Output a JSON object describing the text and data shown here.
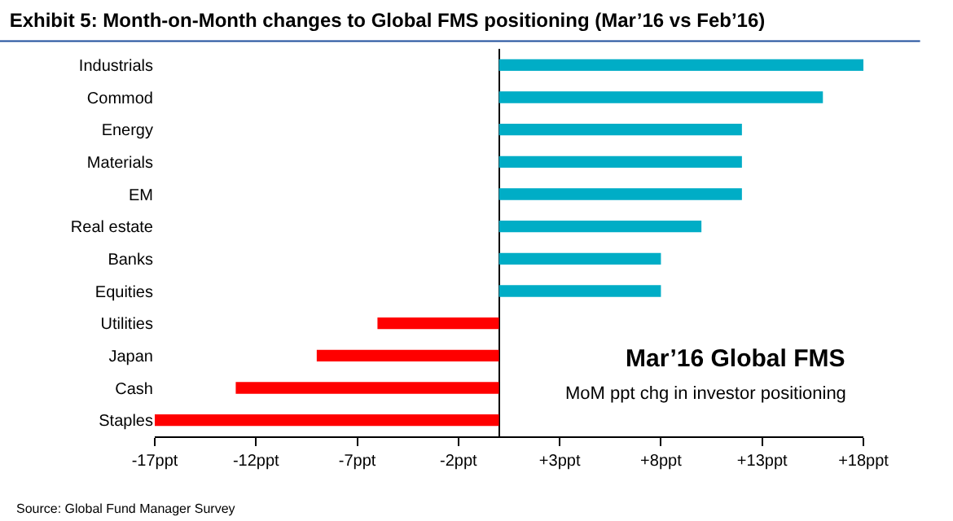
{
  "chart_data": {
    "type": "bar",
    "orientation": "horizontal",
    "title": "Exhibit 5: Month-on-Month changes to Global FMS positioning (Mar’16 vs Feb’16)",
    "categories": [
      "Industrials",
      "Commod",
      "Energy",
      "Materials",
      "EM",
      "Real estate",
      "Banks",
      "Equities",
      "Utilities",
      "Japan",
      "Cash",
      "Staples"
    ],
    "values": [
      18,
      16,
      12,
      12,
      12,
      10,
      8,
      8,
      -6,
      -9,
      -13,
      -17
    ],
    "colors": [
      "#00adc6",
      "#00adc6",
      "#00adc6",
      "#00adc6",
      "#00adc6",
      "#00adc6",
      "#00adc6",
      "#00adc6",
      "#ff0000",
      "#ff0000",
      "#ff0000",
      "#ff0000"
    ],
    "xlim": [
      -17,
      18
    ],
    "xticks": [
      {
        "value": -17,
        "label": "-17ppt"
      },
      {
        "value": -12,
        "label": "-12ppt"
      },
      {
        "value": -7,
        "label": "-7ppt"
      },
      {
        "value": -2,
        "label": "-2ppt"
      },
      {
        "value": 3,
        "label": "+3ppt"
      },
      {
        "value": 8,
        "label": "+8ppt"
      },
      {
        "value": 13,
        "label": "+13ppt"
      },
      {
        "value": 18,
        "label": "+18ppt"
      }
    ],
    "annotations": [
      "Mar’16 Global FMS",
      "MoM ppt chg in investor positioning",
      "Source: Global Fund Manager Survey"
    ]
  }
}
